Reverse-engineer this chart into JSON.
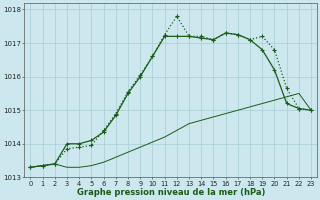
{
  "bg_color": "#cce8ee",
  "grid_color": "#a8cdd4",
  "line_color": "#1a5c1a",
  "xlabel": "Graphe pression niveau de la mer (hPa)",
  "x": [
    0,
    1,
    2,
    3,
    4,
    5,
    6,
    7,
    8,
    9,
    10,
    11,
    12,
    13,
    14,
    15,
    16,
    17,
    18,
    19,
    20,
    21,
    22,
    23
  ],
  "y_diag": [
    1013.3,
    1013.35,
    1013.4,
    1013.3,
    1013.3,
    1013.35,
    1013.45,
    1013.6,
    1013.75,
    1013.9,
    1014.05,
    1014.2,
    1014.4,
    1014.6,
    1014.7,
    1014.8,
    1014.9,
    1015.0,
    1015.1,
    1015.2,
    1015.3,
    1015.4,
    1015.5,
    1015.0
  ],
  "y_dotted": [
    1013.3,
    1013.35,
    1013.4,
    1013.85,
    1013.9,
    1013.95,
    1014.4,
    1014.9,
    1015.55,
    1016.05,
    1016.6,
    1017.25,
    1017.8,
    1017.2,
    1017.2,
    1017.1,
    1017.3,
    1017.25,
    1017.1,
    1017.2,
    1016.8,
    1015.65,
    1015.05,
    1015.0
  ],
  "y_solid": [
    1013.3,
    1013.35,
    1013.4,
    1014.0,
    1014.0,
    1014.1,
    1014.35,
    1014.85,
    1015.5,
    1016.0,
    1016.6,
    1017.2,
    1017.2,
    1017.2,
    1017.15,
    1017.1,
    1017.3,
    1017.25,
    1017.1,
    1016.8,
    1016.2,
    1015.2,
    1015.05,
    1015.0
  ],
  "ylim": [
    1013.0,
    1018.2
  ],
  "yticks": [
    1013,
    1014,
    1015,
    1016,
    1017,
    1018
  ],
  "xticks": [
    0,
    1,
    2,
    3,
    4,
    5,
    6,
    7,
    8,
    9,
    10,
    11,
    12,
    13,
    14,
    15,
    16,
    17,
    18,
    19,
    20,
    21,
    22,
    23
  ]
}
